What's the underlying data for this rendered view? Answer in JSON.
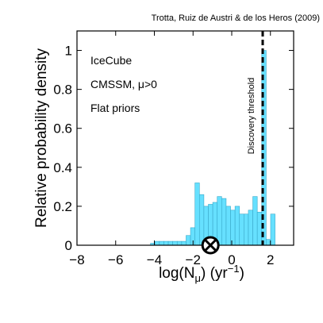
{
  "chart_data": {
    "type": "bar",
    "citation": "Trotta, Ruiz de Austri & de los Heros (2009)",
    "xlabel_main": "log(N",
    "xlabel_sub": "μ",
    "xlabel_unit": ") (yr",
    "xlabel_sup": "−1",
    "xlabel_close": ")",
    "ylabel": "Relative probability density",
    "xlim": [
      -8,
      3.2
    ],
    "ylim": [
      0,
      1.1
    ],
    "xticks": [
      -8,
      -6,
      -4,
      -2,
      0,
      2
    ],
    "xtick_labels": [
      "−8",
      "−6",
      "−4",
      "−2",
      "0",
      "2"
    ],
    "yticks": [
      0,
      0.2,
      0.4,
      0.6,
      0.8,
      1
    ],
    "ytick_labels": [
      "0",
      "0.2",
      "0.4",
      "0.6",
      "0.8",
      "1"
    ],
    "annotations": [
      "IceCube",
      "CMSSM, μ>0",
      "Flat priors"
    ],
    "threshold": {
      "x": 1.6,
      "label": "Discovery threshold"
    },
    "marker": {
      "x": -1.1,
      "y": 0,
      "symbol": "circle-x"
    },
    "bar_color": "#66e0ff",
    "bin_width": 0.23,
    "bins": [
      {
        "x": -4.2,
        "y": 0.01
      },
      {
        "x": -3.97,
        "y": 0.02
      },
      {
        "x": -3.74,
        "y": 0.02
      },
      {
        "x": -3.51,
        "y": 0.02
      },
      {
        "x": -3.28,
        "y": 0.02
      },
      {
        "x": -3.05,
        "y": 0.02
      },
      {
        "x": -2.82,
        "y": 0.02
      },
      {
        "x": -2.59,
        "y": 0.02
      },
      {
        "x": -2.36,
        "y": 0.05
      },
      {
        "x": -2.13,
        "y": 0.09
      },
      {
        "x": -1.9,
        "y": 0.32
      },
      {
        "x": -1.67,
        "y": 0.26
      },
      {
        "x": -1.44,
        "y": 0.2
      },
      {
        "x": -1.21,
        "y": 0.21
      },
      {
        "x": -0.98,
        "y": 0.22
      },
      {
        "x": -0.75,
        "y": 0.25
      },
      {
        "x": -0.52,
        "y": 0.24
      },
      {
        "x": -0.29,
        "y": 0.2
      },
      {
        "x": -0.06,
        "y": 0.18
      },
      {
        "x": 0.17,
        "y": 0.2
      },
      {
        "x": 0.4,
        "y": 0.16
      },
      {
        "x": 0.63,
        "y": 0.16
      },
      {
        "x": 0.86,
        "y": 0.18
      },
      {
        "x": 1.09,
        "y": 0.25
      },
      {
        "x": 1.32,
        "y": 0.17
      },
      {
        "x": 1.55,
        "y": 1.0
      },
      {
        "x": 1.78,
        "y": 0.03
      },
      {
        "x": 2.01,
        "y": 0.16
      }
    ]
  }
}
